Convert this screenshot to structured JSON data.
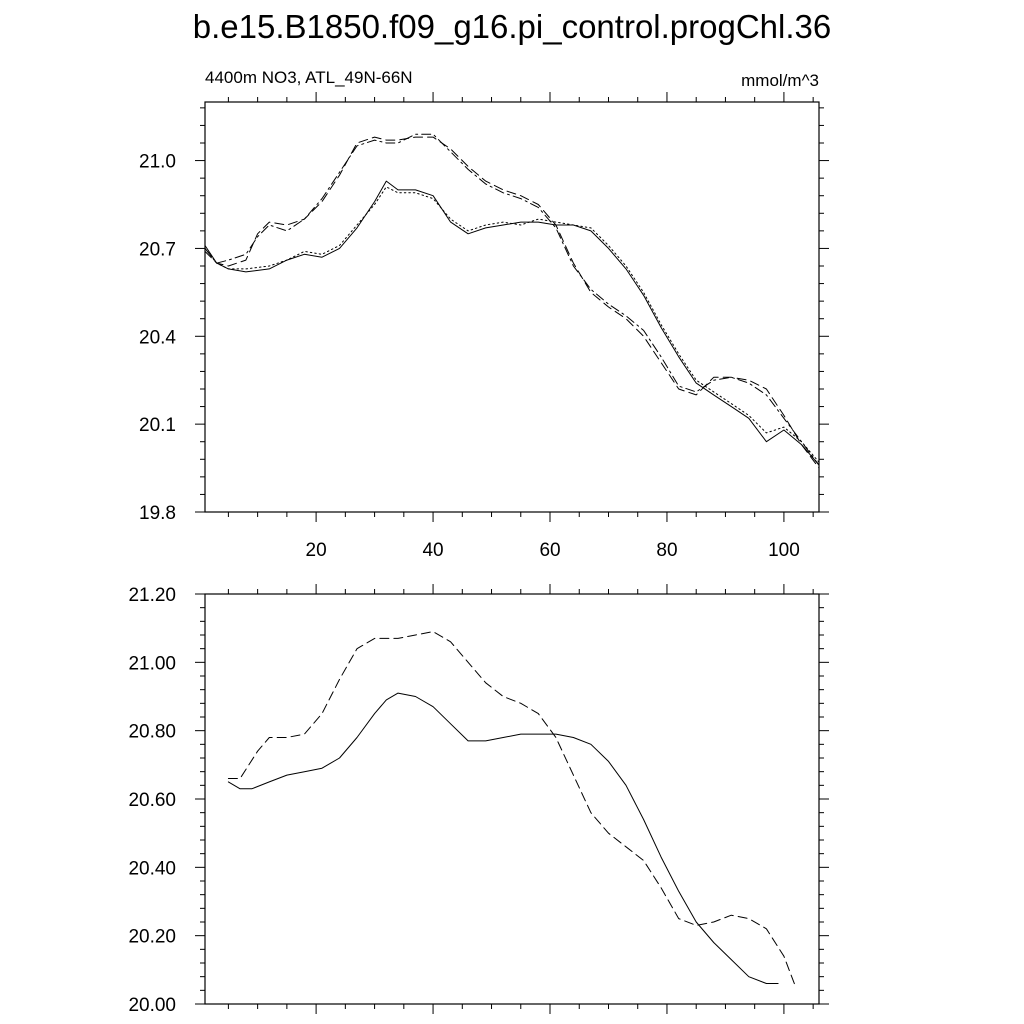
{
  "title": "b.e15.B1850.f09_g16.pi_control.progChl.36",
  "chart_data": [
    {
      "type": "line",
      "left_string": "4400m NO3, ATL_49N-66N",
      "right_string": "mmol/m^3",
      "xlim": [
        1,
        106
      ],
      "ylim": [
        19.8,
        21.2
      ],
      "x_ticks": [
        20,
        40,
        60,
        80,
        100
      ],
      "x_tick_labels": [
        "20",
        "40",
        "60",
        "80",
        "100"
      ],
      "y_ticks": [
        19.8,
        20.1,
        20.4,
        20.7,
        21.0
      ],
      "y_tick_labels": [
        "19.8",
        "20.1",
        "20.4",
        "20.7",
        "21.0"
      ],
      "grid": false,
      "series": [
        {
          "style": "solid",
          "x": [
            1,
            3,
            5,
            8,
            12,
            15,
            18,
            21,
            24,
            27,
            30,
            32,
            34,
            37,
            40,
            43,
            46,
            49,
            52,
            55,
            58,
            61,
            64,
            67,
            70,
            73,
            76,
            79,
            82,
            85,
            88,
            91,
            94,
            97,
            100,
            103,
            106
          ],
          "y": [
            20.71,
            20.65,
            20.63,
            20.62,
            20.63,
            20.66,
            20.68,
            20.67,
            20.7,
            20.77,
            20.86,
            20.93,
            20.9,
            20.9,
            20.88,
            20.79,
            20.75,
            20.77,
            20.78,
            20.79,
            20.79,
            20.78,
            20.78,
            20.76,
            20.7,
            20.63,
            20.54,
            20.43,
            20.33,
            20.24,
            20.2,
            20.16,
            20.12,
            20.04,
            20.08,
            20.03,
            19.96
          ]
        },
        {
          "style": "dotted",
          "x": [
            1,
            3,
            5,
            8,
            12,
            15,
            18,
            21,
            24,
            27,
            30,
            32,
            34,
            37,
            40,
            43,
            46,
            49,
            52,
            55,
            58,
            61,
            64,
            67,
            70,
            73,
            76,
            79,
            82,
            85,
            88,
            91,
            94,
            97,
            100,
            103,
            106
          ],
          "y": [
            20.7,
            20.65,
            20.63,
            20.63,
            20.64,
            20.66,
            20.69,
            20.68,
            20.71,
            20.78,
            20.85,
            20.91,
            20.89,
            20.89,
            20.87,
            20.8,
            20.76,
            20.78,
            20.79,
            20.78,
            20.8,
            20.79,
            20.78,
            20.77,
            20.71,
            20.64,
            20.55,
            20.44,
            20.34,
            20.25,
            20.21,
            20.17,
            20.13,
            20.07,
            20.09,
            20.04,
            19.97
          ]
        },
        {
          "style": "dashed",
          "x": [
            1,
            3,
            5,
            8,
            10,
            12,
            15,
            18,
            21,
            24,
            27,
            30,
            32,
            34,
            37,
            40,
            43,
            46,
            49,
            52,
            55,
            58,
            61,
            64,
            67,
            70,
            73,
            76,
            79,
            82,
            85,
            88,
            91,
            94,
            97,
            100,
            103,
            106
          ],
          "y": [
            20.69,
            20.65,
            20.64,
            20.66,
            20.75,
            20.79,
            20.78,
            20.8,
            20.86,
            20.95,
            21.06,
            21.08,
            21.07,
            21.07,
            21.08,
            21.08,
            21.04,
            20.98,
            20.93,
            20.9,
            20.88,
            20.85,
            20.78,
            20.65,
            20.55,
            20.5,
            20.46,
            20.4,
            20.31,
            20.22,
            20.2,
            20.26,
            20.26,
            20.25,
            20.22,
            20.13,
            20.03,
            19.95
          ]
        },
        {
          "style": "dashdot",
          "x": [
            1,
            3,
            5,
            8,
            10,
            12,
            15,
            18,
            21,
            24,
            27,
            30,
            32,
            34,
            37,
            40,
            43,
            46,
            49,
            52,
            55,
            58,
            61,
            64,
            67,
            70,
            73,
            76,
            79,
            82,
            85,
            88,
            91,
            94,
            97,
            100,
            103,
            106
          ],
          "y": [
            20.7,
            20.65,
            20.66,
            20.68,
            20.74,
            20.78,
            20.76,
            20.8,
            20.87,
            20.96,
            21.05,
            21.07,
            21.06,
            21.06,
            21.09,
            21.09,
            21.03,
            20.97,
            20.92,
            20.89,
            20.87,
            20.84,
            20.77,
            20.64,
            20.56,
            20.51,
            20.47,
            20.42,
            20.33,
            20.23,
            20.21,
            20.25,
            20.26,
            20.24,
            20.2,
            20.12,
            20.04,
            19.96
          ]
        }
      ]
    },
    {
      "type": "line",
      "xlim": [
        1,
        106
      ],
      "ylim": [
        20.0,
        21.2
      ],
      "x_ticks": [
        20,
        40,
        60,
        80,
        100
      ],
      "y_ticks": [
        20.0,
        20.2,
        20.4,
        20.6,
        20.8,
        21.0,
        21.2
      ],
      "y_tick_labels": [
        "20.00",
        "20.20",
        "20.40",
        "20.60",
        "20.80",
        "21.00",
        "21.20"
      ],
      "grid": false,
      "series": [
        {
          "style": "solid",
          "x": [
            5,
            7,
            9,
            12,
            15,
            18,
            21,
            24,
            27,
            30,
            32,
            34,
            37,
            40,
            43,
            46,
            49,
            52,
            55,
            58,
            61,
            64,
            67,
            70,
            73,
            76,
            79,
            82,
            85,
            88,
            91,
            94,
            97,
            99
          ],
          "y": [
            20.65,
            20.63,
            20.63,
            20.65,
            20.67,
            20.68,
            20.69,
            20.72,
            20.78,
            20.85,
            20.89,
            20.91,
            20.9,
            20.87,
            20.82,
            20.77,
            20.77,
            20.78,
            20.79,
            20.79,
            20.79,
            20.78,
            20.76,
            20.71,
            20.64,
            20.54,
            20.43,
            20.33,
            20.24,
            20.18,
            20.13,
            20.08,
            20.06,
            20.06
          ]
        },
        {
          "style": "dashed",
          "x": [
            5,
            7,
            10,
            12,
            15,
            18,
            21,
            24,
            27,
            30,
            32,
            34,
            37,
            40,
            43,
            46,
            49,
            52,
            55,
            58,
            61,
            64,
            67,
            70,
            73,
            76,
            79,
            82,
            85,
            88,
            91,
            94,
            97,
            100,
            102
          ],
          "y": [
            20.66,
            20.66,
            20.74,
            20.78,
            20.78,
            20.79,
            20.85,
            20.95,
            21.04,
            21.07,
            21.07,
            21.07,
            21.08,
            21.09,
            21.06,
            21.0,
            20.94,
            20.9,
            20.88,
            20.85,
            20.78,
            20.67,
            20.56,
            20.5,
            20.46,
            20.42,
            20.34,
            20.25,
            20.23,
            20.24,
            20.26,
            20.25,
            20.22,
            20.14,
            20.05
          ]
        }
      ]
    }
  ]
}
